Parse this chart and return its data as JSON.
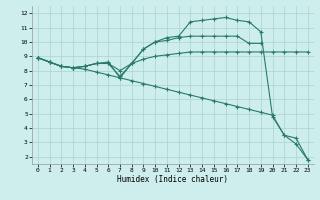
{
  "xlabel": "Humidex (Indice chaleur)",
  "bg_color": "#ceeeed",
  "grid_color": "#aad4d0",
  "line_color": "#2a7a6a",
  "xlim": [
    -0.5,
    23.5
  ],
  "ylim": [
    1.5,
    12.5
  ],
  "xticks": [
    0,
    1,
    2,
    3,
    4,
    5,
    6,
    7,
    8,
    9,
    10,
    11,
    12,
    13,
    14,
    15,
    16,
    17,
    18,
    19,
    20,
    21,
    22,
    23
  ],
  "yticks": [
    2,
    3,
    4,
    5,
    6,
    7,
    8,
    9,
    10,
    11,
    12
  ],
  "line_peak_x": [
    0,
    1,
    2,
    3,
    4,
    5,
    6,
    7,
    8,
    9,
    10,
    11,
    12,
    13,
    14,
    15,
    16,
    17,
    18,
    19,
    20,
    21,
    22,
    23
  ],
  "line_peak_y": [
    8.9,
    8.6,
    8.3,
    8.2,
    8.3,
    8.5,
    8.6,
    7.5,
    8.5,
    9.5,
    10.0,
    10.3,
    10.4,
    11.4,
    11.5,
    11.6,
    11.7,
    11.5,
    11.4,
    10.7,
    4.8,
    3.5,
    3.3,
    1.8
  ],
  "line_mid_x": [
    0,
    1,
    2,
    3,
    4,
    5,
    6,
    7,
    8,
    9,
    10,
    11,
    12,
    13,
    14,
    15,
    16,
    17,
    18,
    19
  ],
  "line_mid_y": [
    8.9,
    8.6,
    8.3,
    8.2,
    8.3,
    8.5,
    8.5,
    7.6,
    8.5,
    9.5,
    10.0,
    10.1,
    10.3,
    10.4,
    10.4,
    10.4,
    10.4,
    10.4,
    9.9,
    9.9
  ],
  "line_flat_x": [
    0,
    1,
    2,
    3,
    4,
    5,
    6,
    7,
    8,
    9,
    10,
    11,
    12,
    13,
    14,
    15,
    16,
    17,
    18,
    19,
    20,
    21,
    22,
    23
  ],
  "line_flat_y": [
    8.9,
    8.6,
    8.3,
    8.2,
    8.3,
    8.5,
    8.5,
    8.0,
    8.5,
    8.8,
    9.0,
    9.1,
    9.2,
    9.3,
    9.3,
    9.3,
    9.3,
    9.3,
    9.3,
    9.3,
    9.3,
    9.3,
    9.3,
    9.3
  ],
  "line_diag_x": [
    0,
    1,
    2,
    3,
    4,
    5,
    6,
    7,
    8,
    9,
    10,
    11,
    12,
    13,
    14,
    15,
    16,
    17,
    18,
    19,
    20,
    21,
    22,
    23
  ],
  "line_diag_y": [
    8.9,
    8.6,
    8.3,
    8.2,
    8.1,
    7.9,
    7.7,
    7.5,
    7.3,
    7.1,
    6.9,
    6.7,
    6.5,
    6.3,
    6.1,
    5.9,
    5.7,
    5.5,
    5.3,
    5.1,
    4.9,
    3.5,
    2.9,
    1.8
  ]
}
